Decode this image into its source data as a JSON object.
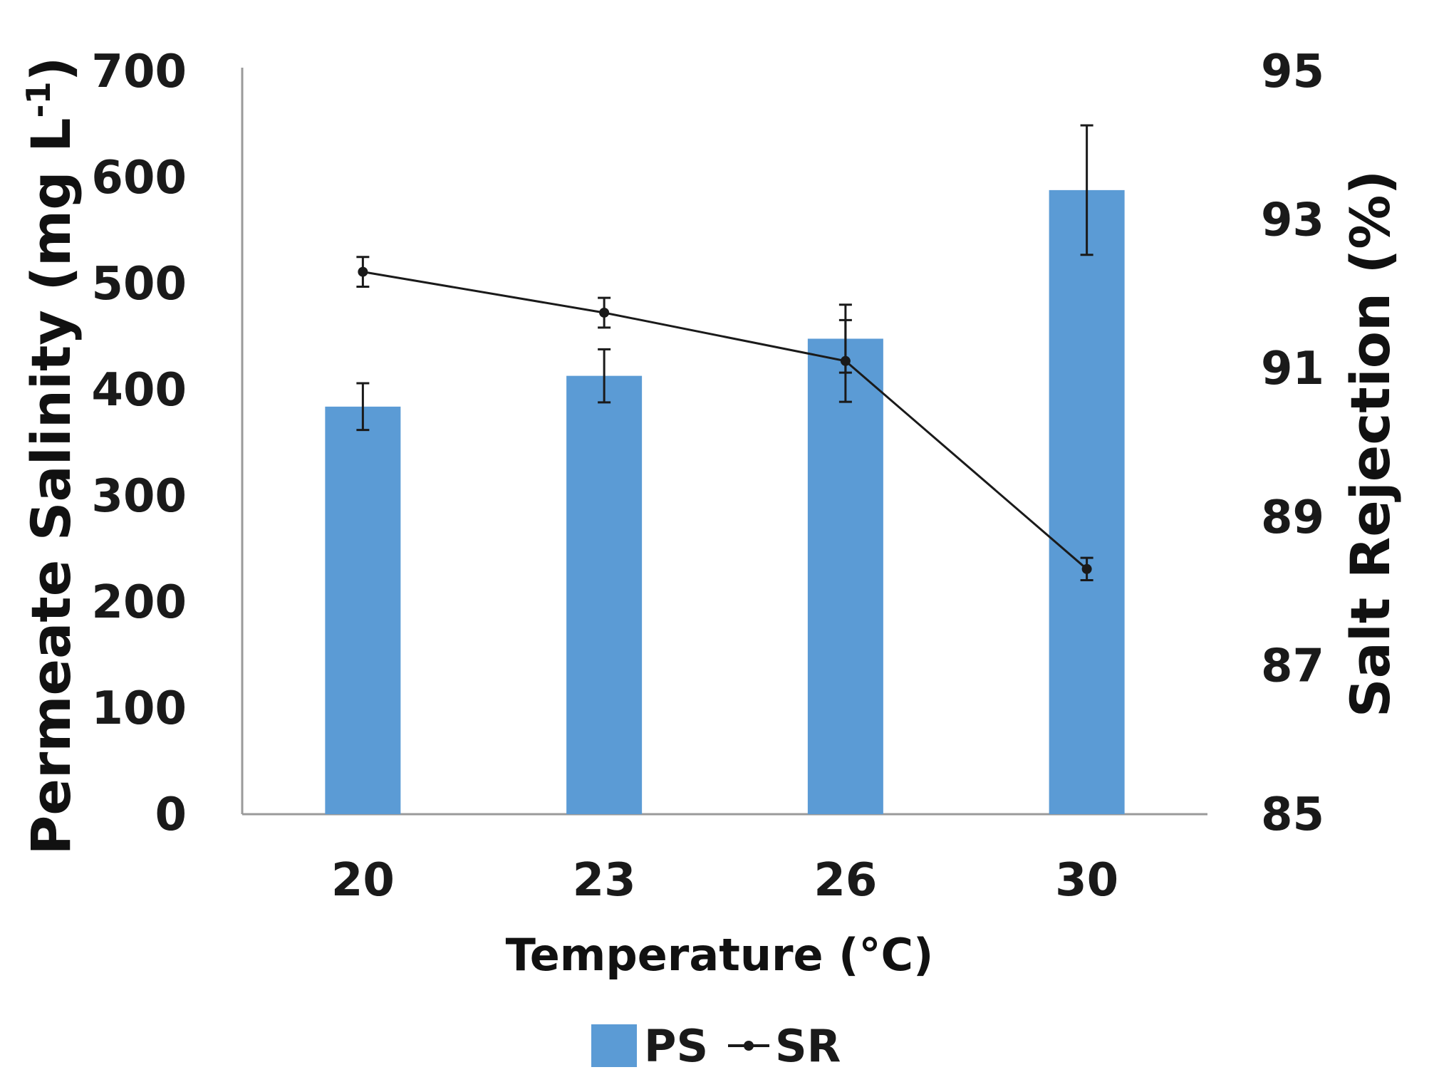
{
  "chart_data": {
    "type": "bar+line",
    "categories": [
      "20",
      "23",
      "26",
      "30"
    ],
    "xlabel": "Temperature (°C)",
    "series": [
      {
        "name": "PS",
        "type": "bar",
        "axis": "left",
        "color": "#5b9bd5",
        "values": [
          384,
          413,
          448,
          588
        ],
        "errors": [
          22,
          25,
          32,
          61
        ]
      },
      {
        "name": "SR",
        "type": "line",
        "axis": "right",
        "color": "#1a1a1a",
        "values": [
          92.3,
          91.75,
          91.1,
          88.3
        ],
        "errors": [
          0.2,
          0.2,
          0.55,
          0.15
        ]
      }
    ],
    "y_left": {
      "label_main": "Permeate Salinity (mg L",
      "label_sup": "-1",
      "label_end": ")",
      "ylim": [
        0,
        700
      ],
      "ticks": [
        "0",
        "100",
        "200",
        "300",
        "400",
        "500",
        "600",
        "700"
      ],
      "tick_values": [
        0,
        100,
        200,
        300,
        400,
        500,
        600,
        700
      ]
    },
    "y_right": {
      "label": "Salt Rejection (%)",
      "ylim": [
        85,
        95
      ],
      "ticks": [
        "85",
        "87",
        "89",
        "91",
        "93",
        "95"
      ],
      "tick_values": [
        85,
        87,
        89,
        91,
        93,
        95
      ]
    },
    "legend": {
      "position": "bottom",
      "ps_label": "PS",
      "sr_label": "SR"
    },
    "grid": false
  }
}
